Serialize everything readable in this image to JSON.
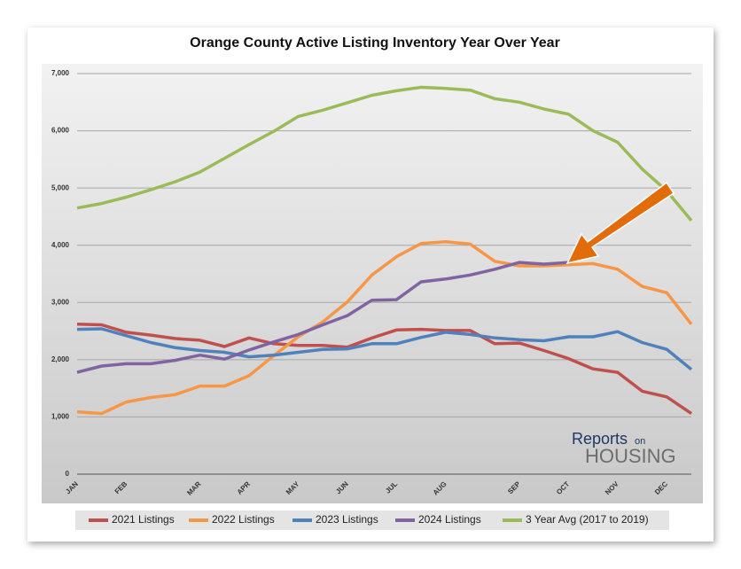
{
  "chart_data": {
    "type": "line",
    "title": "Orange County Active Listing Inventory Year Over Year",
    "categories": [
      "JAN",
      null,
      "FEB",
      null,
      null,
      "MAR",
      null,
      "APR",
      null,
      "MAY",
      null,
      "JUN",
      null,
      "JUL",
      null,
      "AUG",
      null,
      null,
      "SEP",
      null,
      "OCT",
      null,
      "NOV",
      null,
      "DEC",
      null
    ],
    "ylim": [
      0,
      7000
    ],
    "yticks": [
      0,
      {
        "value": 1000,
        "label": "1,000"
      },
      {
        "value": 2000,
        "label": "2,000"
      },
      {
        "value": 3000,
        "label": "3,000"
      },
      {
        "value": 4000,
        "label": "4,000"
      },
      {
        "value": 5000,
        "label": "5,000"
      },
      {
        "value": 6000,
        "label": "6,000"
      },
      {
        "value": 7000,
        "label": "7,000"
      }
    ],
    "grid": true,
    "legend": "bottom",
    "series": [
      {
        "name": "2021 Listings",
        "color": "#c0504d",
        "values": [
          2620,
          2610,
          2480,
          2430,
          2370,
          2340,
          2230,
          2380,
          2280,
          2250,
          2250,
          2220,
          2380,
          2520,
          2530,
          2510,
          2510,
          2280,
          2290,
          2160,
          2020,
          1840,
          1780,
          1450,
          1350,
          1060
        ]
      },
      {
        "name": "2022 Listings",
        "color": "#f79646",
        "values": [
          1090,
          1060,
          1260,
          1340,
          1390,
          1540,
          1540,
          1720,
          2070,
          2400,
          2660,
          3010,
          3480,
          3800,
          4030,
          4060,
          4020,
          3720,
          3640,
          3640,
          3660,
          3680,
          3580,
          3280,
          3170,
          2620
        ]
      },
      {
        "name": "2023 Listings",
        "color": "#4f81bd",
        "values": [
          2530,
          2540,
          2420,
          2300,
          2210,
          2160,
          2130,
          2050,
          2080,
          2130,
          2180,
          2190,
          2280,
          2280,
          2390,
          2480,
          2440,
          2380,
          2350,
          2330,
          2400,
          2400,
          2490,
          2300,
          2180,
          1830
        ]
      },
      {
        "name": "2024 Listings",
        "color": "#8064a2",
        "values": [
          1780,
          1890,
          1930,
          1930,
          1990,
          2080,
          2010,
          2170,
          2310,
          2440,
          2610,
          2770,
          3040,
          3050,
          3360,
          3410,
          3480,
          3580,
          3700,
          3670,
          3700,
          null,
          null,
          null,
          null,
          null
        ]
      },
      {
        "name": "3 Year Avg (2017 to 2019)",
        "color": "#9bbb59",
        "values": [
          4650,
          4730,
          4840,
          4970,
          5110,
          5280,
          5520,
          5760,
          5990,
          6250,
          6360,
          6490,
          6620,
          6700,
          6760,
          6740,
          6710,
          6560,
          6500,
          6380,
          6290,
          6000,
          5800,
          5330,
          4950,
          4430
        ]
      }
    ]
  },
  "logo": {
    "word": "Reports",
    "small": "on",
    "big": "HOUSING"
  }
}
